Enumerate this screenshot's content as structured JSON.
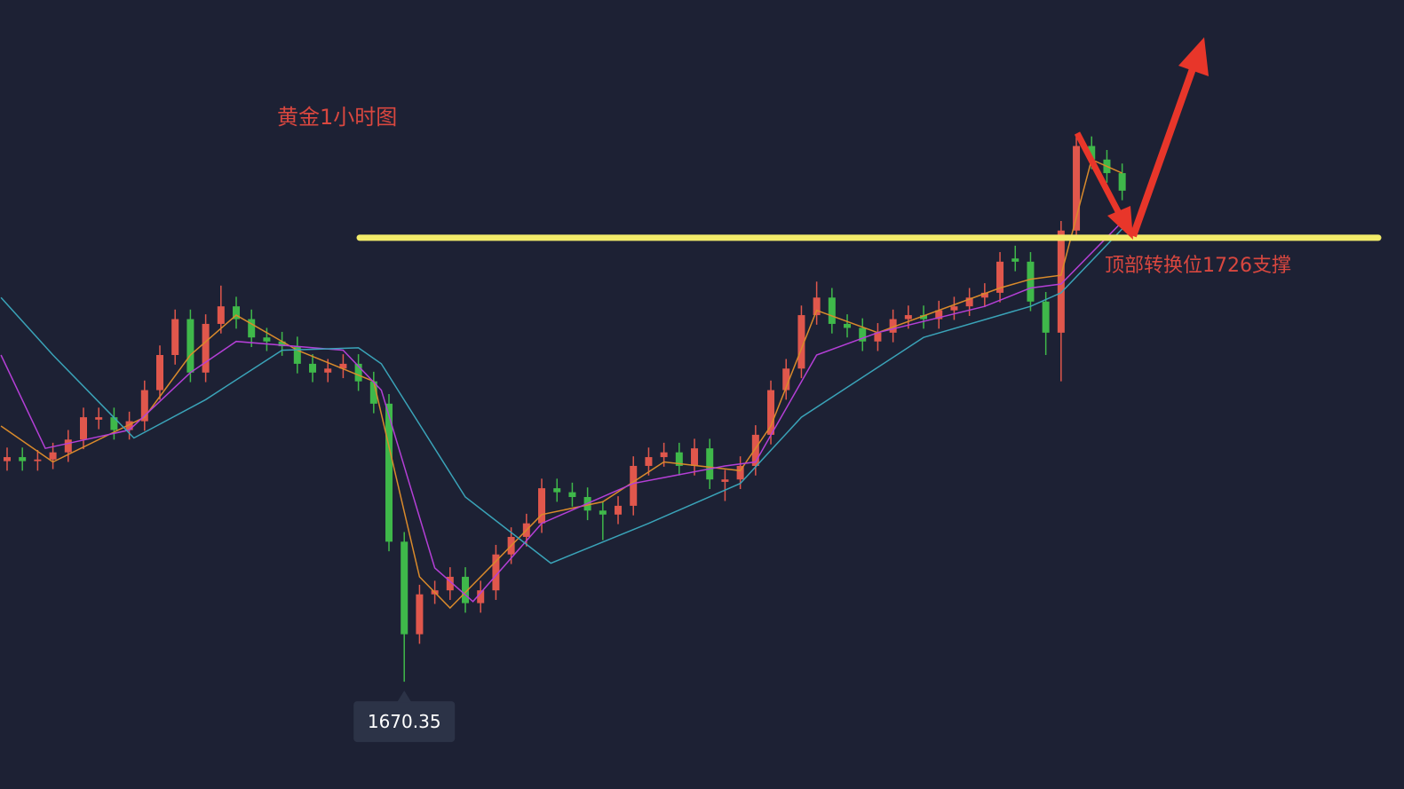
{
  "chart_data": {
    "type": "candlestick",
    "title": "黄金1小时图",
    "annotation": "顶部转换位1726支撑",
    "support_level": 1726,
    "support_color": "#f3ec6a",
    "up_color": "#e0574c",
    "down_color": "#3fb84a",
    "ylim": [
      1656.9,
      1755.8
    ],
    "xlim": [
      -0.465,
      91.45
    ],
    "open": [
      1698.0,
      1698.5,
      1698.0,
      1698.2,
      1699.1,
      1700.7,
      1703.2,
      1703.5,
      1701.9,
      1703.0,
      1706.9,
      1711.3,
      1715.8,
      1709.1,
      1715.2,
      1717.4,
      1715.8,
      1713.5,
      1713.0,
      1712.4,
      1710.2,
      1709.1,
      1709.6,
      1710.2,
      1708.0,
      1705.2,
      1687.9,
      1676.3,
      1681.3,
      1681.8,
      1683.5,
      1680.2,
      1681.8,
      1686.3,
      1688.5,
      1690.2,
      1694.6,
      1694.1,
      1693.5,
      1691.8,
      1691.3,
      1692.4,
      1697.4,
      1698.5,
      1699.1,
      1697.4,
      1699.6,
      1695.4,
      1695.7,
      1697.4,
      1701.3,
      1706.9,
      1709.6,
      1716.3,
      1718.5,
      1715.2,
      1714.7,
      1713.0,
      1714.1,
      1715.8,
      1716.3,
      1715.8,
      1716.9,
      1717.4,
      1718.5,
      1719.1,
      1723.4,
      1723.0,
      1718.0,
      1714.1,
      1726.9,
      1737.5,
      1735.8,
      1734.1
    ],
    "high": [
      1699.7,
      1699.7,
      1699.4,
      1700.3,
      1701.9,
      1704.7,
      1704.7,
      1704.7,
      1704.2,
      1708.1,
      1712.5,
      1717.0,
      1717.0,
      1716.4,
      1720.0,
      1718.6,
      1717.0,
      1714.7,
      1714.2,
      1713.6,
      1711.4,
      1710.8,
      1711.4,
      1711.4,
      1709.2,
      1706.4,
      1689.1,
      1682.5,
      1683.0,
      1684.7,
      1684.7,
      1683.0,
      1687.5,
      1689.7,
      1691.4,
      1695.8,
      1695.8,
      1695.3,
      1694.7,
      1693.0,
      1693.6,
      1698.6,
      1699.7,
      1700.3,
      1700.3,
      1700.8,
      1700.8,
      1696.9,
      1698.6,
      1702.5,
      1708.1,
      1710.8,
      1717.5,
      1720.5,
      1719.7,
      1716.4,
      1715.9,
      1715.3,
      1717.0,
      1717.5,
      1717.5,
      1718.1,
      1718.6,
      1719.7,
      1720.3,
      1724.2,
      1725.0,
      1724.2,
      1719.2,
      1728.1,
      1739.0,
      1738.7,
      1737.0,
      1735.3
    ],
    "low": [
      1696.8,
      1696.8,
      1696.8,
      1697.0,
      1697.9,
      1699.5,
      1702.0,
      1700.7,
      1700.7,
      1701.8,
      1705.7,
      1710.1,
      1707.9,
      1707.9,
      1714.0,
      1714.6,
      1712.3,
      1711.8,
      1711.2,
      1709.0,
      1707.9,
      1707.9,
      1708.4,
      1706.8,
      1704.0,
      1686.7,
      1670.35,
      1675.1,
      1680.1,
      1680.6,
      1679.0,
      1679.0,
      1680.6,
      1685.1,
      1687.3,
      1689.0,
      1692.9,
      1692.3,
      1690.6,
      1688.1,
      1690.1,
      1691.2,
      1696.2,
      1697.3,
      1696.2,
      1696.2,
      1694.5,
      1693.0,
      1694.5,
      1696.2,
      1700.1,
      1705.7,
      1708.4,
      1715.1,
      1714.0,
      1713.5,
      1711.8,
      1711.8,
      1712.9,
      1714.6,
      1714.6,
      1714.6,
      1715.7,
      1716.2,
      1717.3,
      1717.9,
      1721.8,
      1716.8,
      1711.3,
      1708.0,
      1725.7,
      1734.6,
      1732.9,
      1730.7
    ],
    "close": [
      1698.5,
      1698.0,
      1698.2,
      1699.1,
      1700.7,
      1703.5,
      1703.5,
      1701.9,
      1703.0,
      1706.9,
      1711.3,
      1715.8,
      1709.1,
      1715.2,
      1717.4,
      1715.8,
      1713.5,
      1713.0,
      1712.4,
      1710.2,
      1709.1,
      1709.6,
      1710.2,
      1708.0,
      1705.2,
      1687.9,
      1676.3,
      1681.3,
      1681.8,
      1683.5,
      1680.2,
      1681.8,
      1686.3,
      1688.5,
      1690.2,
      1694.6,
      1694.1,
      1693.5,
      1691.8,
      1691.3,
      1692.4,
      1697.4,
      1698.5,
      1699.1,
      1697.4,
      1699.6,
      1695.7,
      1695.7,
      1697.4,
      1701.3,
      1706.9,
      1709.6,
      1716.3,
      1718.5,
      1715.2,
      1714.7,
      1713.0,
      1714.1,
      1715.8,
      1716.3,
      1715.8,
      1716.9,
      1717.4,
      1718.5,
      1719.1,
      1723.0,
      1723.0,
      1718.0,
      1714.1,
      1726.9,
      1737.5,
      1735.8,
      1734.1,
      1731.9
    ],
    "moving_averages": [
      {
        "color": "#d98a2b",
        "x": [
          -0.4,
          3,
          9,
          12,
          15,
          19,
          24,
          27,
          29,
          35,
          39,
          43,
          48,
          50,
          53,
          57,
          65,
          67,
          69,
          71,
          73
        ],
        "values": [
          1702.4,
          1697.9,
          1703.5,
          1711.3,
          1716.3,
          1711.9,
          1708.0,
          1683.5,
          1679.6,
          1691.3,
          1692.9,
          1697.9,
          1696.8,
          1702.4,
          1716.9,
          1714.1,
          1719.7,
          1720.8,
          1721.3,
          1735.8,
          1734.1
        ]
      },
      {
        "color": "#b43fd6",
        "x": [
          -0.4,
          2.5,
          8,
          12,
          15,
          22,
          24.5,
          28,
          30.5,
          35,
          41,
          47,
          49,
          53,
          57,
          64,
          67,
          69,
          73
        ],
        "values": [
          1711.3,
          1699.6,
          1701.9,
          1709.1,
          1713.0,
          1711.9,
          1706.9,
          1684.6,
          1680.4,
          1690.2,
          1695.2,
          1697.4,
          1697.9,
          1711.3,
          1714.1,
          1717.4,
          1719.7,
          1720.2,
          1728.0
        ]
      },
      {
        "color": "#3aa3b8",
        "x": [
          -0.4,
          3,
          8.3,
          13,
          18,
          23,
          24.5,
          30,
          35.6,
          42,
          48,
          52,
          60,
          67,
          69,
          73
        ],
        "values": [
          1718.5,
          1711.3,
          1700.9,
          1705.7,
          1711.9,
          1712.2,
          1710.2,
          1693.5,
          1685.2,
          1690.2,
          1695.2,
          1703.5,
          1713.5,
          1717.4,
          1719.1,
          1727.1
        ]
      }
    ]
  }
}
